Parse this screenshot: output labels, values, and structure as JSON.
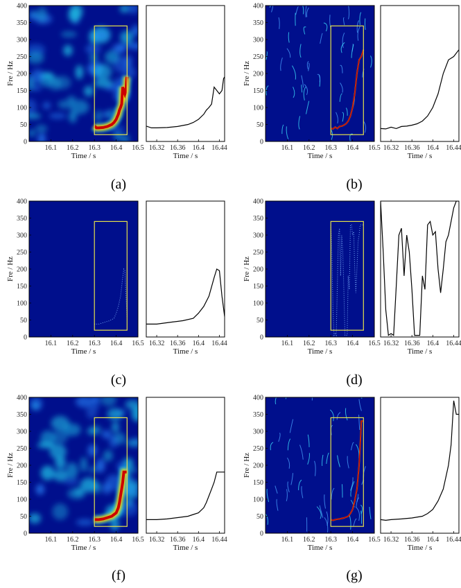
{
  "figure": {
    "panels": [
      {
        "id": "a",
        "label": "(a)",
        "spec_style": "smooth"
      },
      {
        "id": "b",
        "label": "(b)",
        "spec_style": "sparse"
      },
      {
        "id": "c",
        "label": "(c)",
        "spec_style": "empty"
      },
      {
        "id": "d",
        "label": "(d)",
        "spec_style": "empty"
      },
      {
        "id": "f",
        "label": "(f)",
        "spec_style": "smooth"
      },
      {
        "id": "g",
        "label": "(g)",
        "spec_style": "sparse"
      }
    ]
  },
  "colors": {
    "spectrogram_background": "#000f8c",
    "spectrogram_ridge": "#cc0000",
    "roi_box": "#e6e04a",
    "curve": "#000000"
  },
  "chart_data": [
    {
      "type": "heatmap",
      "panel": "a",
      "kind": "spectrogram",
      "xlabel": "Time / s",
      "ylabel": "Fre / Hz",
      "xlim": [
        16.0,
        16.5
      ],
      "ylim": [
        0,
        400
      ],
      "xticks": [
        "16.1",
        "16.2",
        "16.3",
        "16.4",
        "16.5"
      ],
      "yticks": [
        "0",
        "50",
        "100",
        "150",
        "200",
        "250",
        "300",
        "350",
        "400"
      ],
      "roi": {
        "x": [
          16.3,
          16.45
        ],
        "y": [
          20,
          340
        ]
      }
    },
    {
      "type": "line",
      "panel": "a",
      "kind": "curve",
      "xlabel": "Time / s",
      "xlim": [
        16.3,
        16.45
      ],
      "ylim": [
        0,
        400
      ],
      "xticks": [
        "16.32",
        "16.36",
        "16.4",
        "16.44"
      ],
      "series": [
        {
          "x": [
            16.3,
            16.31,
            16.32,
            16.34,
            16.36,
            16.38,
            16.39,
            16.4,
            16.41,
            16.415,
            16.42,
            16.425,
            16.43,
            16.44,
            16.445,
            16.448,
            16.45
          ],
          "y": [
            45,
            40,
            40,
            41,
            44,
            50,
            56,
            65,
            80,
            92,
            100,
            110,
            160,
            140,
            150,
            185,
            190
          ]
        }
      ]
    },
    {
      "type": "heatmap",
      "panel": "b",
      "kind": "spectrogram",
      "xlabel": "Time / s",
      "ylabel": "Fre / Hz",
      "xlim": [
        16.0,
        16.5
      ],
      "ylim": [
        0,
        400
      ],
      "xticks": [
        "16.1",
        "16.2",
        "16.3",
        "16.4",
        "16.5"
      ],
      "yticks": [
        "0",
        "50",
        "100",
        "150",
        "200",
        "250",
        "300",
        "350",
        "400"
      ],
      "roi": {
        "x": [
          16.3,
          16.45
        ],
        "y": [
          20,
          340
        ]
      }
    },
    {
      "type": "line",
      "panel": "b",
      "kind": "curve",
      "xlabel": "Time / s",
      "xlim": [
        16.3,
        16.45
      ],
      "ylim": [
        0,
        400
      ],
      "xticks": [
        "16.32",
        "16.36",
        "16.4",
        "16.44"
      ],
      "series": [
        {
          "x": [
            16.3,
            16.31,
            16.32,
            16.33,
            16.34,
            16.35,
            16.36,
            16.37,
            16.38,
            16.39,
            16.4,
            16.41,
            16.42,
            16.43,
            16.44,
            16.45
          ],
          "y": [
            38,
            37,
            42,
            38,
            44,
            45,
            48,
            52,
            60,
            75,
            100,
            140,
            200,
            240,
            250,
            270
          ]
        }
      ]
    },
    {
      "type": "heatmap",
      "panel": "c",
      "kind": "spectrogram",
      "xlabel": "Time / s",
      "ylabel": "Fre / Hz",
      "xlim": [
        16.0,
        16.5
      ],
      "ylim": [
        0,
        400
      ],
      "xticks": [
        "16.1",
        "16.2",
        "16.3",
        "16.4",
        "16.5"
      ],
      "yticks": [
        "0",
        "50",
        "100",
        "150",
        "200",
        "250",
        "300",
        "350",
        "400"
      ],
      "roi": {
        "x": [
          16.3,
          16.45
        ],
        "y": [
          20,
          340
        ]
      }
    },
    {
      "type": "line",
      "panel": "c",
      "kind": "curve",
      "xlabel": "Time / s",
      "xlim": [
        16.3,
        16.45
      ],
      "ylim": [
        0,
        400
      ],
      "xticks": [
        "16.32",
        "16.36",
        "16.4",
        "16.44"
      ],
      "series": [
        {
          "x": [
            16.3,
            16.32,
            16.33,
            16.35,
            16.37,
            16.39,
            16.4,
            16.41,
            16.42,
            16.43,
            16.435,
            16.44,
            16.445,
            16.45
          ],
          "y": [
            38,
            38,
            40,
            44,
            48,
            55,
            70,
            90,
            120,
            175,
            200,
            195,
            120,
            60
          ]
        }
      ]
    },
    {
      "type": "heatmap",
      "panel": "d",
      "kind": "spectrogram",
      "xlabel": "Time / s",
      "ylabel": "Fre / Hz",
      "xlim": [
        16.0,
        16.5
      ],
      "ylim": [
        0,
        400
      ],
      "xticks": [
        "16.1",
        "16.2",
        "16.3",
        "16.4",
        "16.5"
      ],
      "yticks": [
        "0",
        "50",
        "100",
        "150",
        "200",
        "250",
        "300",
        "350",
        "400"
      ],
      "roi": {
        "x": [
          16.3,
          16.45
        ],
        "y": [
          20,
          340
        ]
      }
    },
    {
      "type": "line",
      "panel": "d",
      "kind": "curve",
      "xlabel": "Time / s",
      "xlim": [
        16.3,
        16.45
      ],
      "ylim": [
        0,
        400
      ],
      "xticks": [
        "16.32",
        "16.36",
        "16.4",
        "16.44"
      ],
      "series": [
        {
          "x": [
            16.3,
            16.305,
            16.31,
            16.315,
            16.32,
            16.325,
            16.33,
            16.335,
            16.34,
            16.345,
            16.35,
            16.355,
            16.36,
            16.365,
            16.37,
            16.375,
            16.38,
            16.385,
            16.39,
            16.395,
            16.4,
            16.405,
            16.41,
            16.415,
            16.42,
            16.425,
            16.43,
            16.435,
            16.44,
            16.445,
            16.45
          ],
          "y": [
            400,
            250,
            80,
            5,
            10,
            5,
            150,
            300,
            320,
            180,
            300,
            250,
            140,
            5,
            5,
            5,
            180,
            140,
            330,
            340,
            300,
            310,
            200,
            130,
            200,
            280,
            300,
            340,
            380,
            400,
            400
          ]
        }
      ]
    },
    {
      "type": "heatmap",
      "panel": "f",
      "kind": "spectrogram",
      "xlabel": "Time / s",
      "ylabel": "Fre / Hz",
      "xlim": [
        16.0,
        16.5
      ],
      "ylim": [
        0,
        400
      ],
      "xticks": [
        "16.1",
        "16.2",
        "16.3",
        "16.4",
        "16.5"
      ],
      "yticks": [
        "0",
        "50",
        "100",
        "150",
        "200",
        "250",
        "300",
        "350",
        "400"
      ],
      "roi": {
        "x": [
          16.3,
          16.45
        ],
        "y": [
          20,
          340
        ]
      }
    },
    {
      "type": "line",
      "panel": "f",
      "kind": "curve",
      "xlabel": "Time / s",
      "xlim": [
        16.3,
        16.45
      ],
      "ylim": [
        0,
        400
      ],
      "xticks": [
        "16.32",
        "16.36",
        "16.4",
        "16.44"
      ],
      "series": [
        {
          "x": [
            16.3,
            16.32,
            16.34,
            16.36,
            16.38,
            16.39,
            16.4,
            16.41,
            16.415,
            16.42,
            16.425,
            16.43,
            16.435,
            16.445,
            16.45
          ],
          "y": [
            40,
            40,
            42,
            46,
            50,
            55,
            60,
            75,
            90,
            110,
            130,
            150,
            180,
            180,
            180
          ]
        }
      ]
    },
    {
      "type": "heatmap",
      "panel": "g",
      "kind": "spectrogram",
      "xlabel": "Time / s",
      "ylabel": "Fre / Hz",
      "xlim": [
        16.0,
        16.5
      ],
      "ylim": [
        0,
        400
      ],
      "xticks": [
        "16.1",
        "16.2",
        "16.3",
        "16.4",
        "16.5"
      ],
      "yticks": [
        "0",
        "50",
        "100",
        "150",
        "200",
        "250",
        "300",
        "350",
        "400"
      ],
      "roi": {
        "x": [
          16.3,
          16.45
        ],
        "y": [
          20,
          340
        ]
      }
    },
    {
      "type": "line",
      "panel": "g",
      "kind": "curve",
      "xlabel": "Time / s",
      "xlim": [
        16.3,
        16.45
      ],
      "ylim": [
        0,
        400
      ],
      "xticks": [
        "16.32",
        "16.36",
        "16.4",
        "16.44"
      ],
      "series": [
        {
          "x": [
            16.3,
            16.31,
            16.32,
            16.34,
            16.36,
            16.38,
            16.39,
            16.4,
            16.41,
            16.42,
            16.43,
            16.435,
            16.44,
            16.445,
            16.45
          ],
          "y": [
            40,
            38,
            40,
            42,
            45,
            50,
            58,
            70,
            95,
            130,
            200,
            260,
            390,
            350,
            350
          ]
        }
      ]
    }
  ]
}
